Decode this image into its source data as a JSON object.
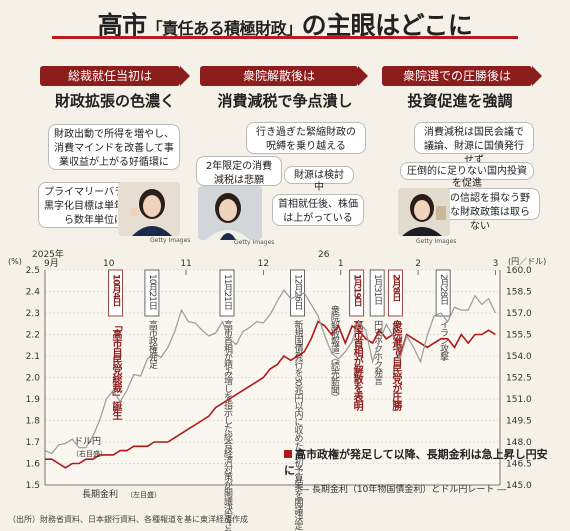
{
  "title": {
    "main": "高市",
    "quote": "「責任ある積極財政」",
    "rest": "の主眼はどこに"
  },
  "phases": [
    {
      "head": "総裁就任当初は",
      "title": "財政拡張の色濃く"
    },
    {
      "head": "衆院解散後は",
      "title": "消費減税で争点潰し"
    },
    {
      "head": "衆院選での圧勝後は",
      "title": "投資促進を強調"
    }
  ],
  "bubbles": {
    "b1": "財政出動で所得を増やし、消費マインドを改善して事業収益が上がる好循環に",
    "b2": "プライマリーバランス黒字化目標は単年度から数年単位に",
    "b3": "行き過ぎた緊縮財政の呪縛を乗り越える",
    "b4": "2年限定の消費減税は悲願",
    "b5": "財源は検討中",
    "b6": "首相就任後、株価は上がっている",
    "b7": "消費減税は国民会議で議論、財源に国債発行せず",
    "b8": "圧倒的に足りない国内投資を促進",
    "b9": "市場の信認を損なう野放図な財政政策は取らない"
  },
  "credit": "Getty Images",
  "chart_subtitle": "高市政権が発足して以降、長期金利は急上昇し円安に",
  "chart_subnote": "― 長期金利（10年物国債金利）とドル円レート ―",
  "source": "（出所）財務省資料、日本銀行資料、各種報道を基に東洋経済作成",
  "colors": {
    "title_red": "#b81c1c",
    "rate_line": "#b01818",
    "fx_line": "#9a9a9a",
    "accent": "#8c1d1d"
  },
  "chart_data": {
    "type": "line",
    "left_unit": "(%)",
    "right_unit": "(円／ドル)",
    "year_label_2025": "2025年",
    "month_sep": "9月",
    "year_label_2026": "26",
    "month_labels": [
      "10",
      "11",
      "12",
      "1",
      "2",
      "3"
    ],
    "left_ticks": [
      "2.5",
      "2.4",
      "2.3",
      "2.2",
      "2.1",
      "2.0",
      "1.9",
      "1.8",
      "1.7",
      "1.6",
      "1.5"
    ],
    "right_ticks": [
      "160.0",
      "158.5",
      "157.0",
      "155.5",
      "154.0",
      "152.5",
      "151.0",
      "149.5",
      "148.0",
      "146.5",
      "145.0"
    ],
    "ylim_left": [
      1.5,
      2.5
    ],
    "ylim_right": [
      145.0,
      160.0
    ],
    "x_range": [
      0,
      200
    ],
    "series": [
      {
        "name": "長期金利（左目盛）",
        "axis": "left",
        "x": [
          0,
          3,
          6,
          9,
          12,
          15,
          18,
          21,
          24,
          27,
          30,
          33,
          36,
          39,
          42,
          45,
          48,
          51,
          54,
          57,
          60,
          63,
          66,
          69,
          72,
          75,
          78,
          81,
          84,
          87,
          90,
          93,
          96,
          99,
          102,
          105,
          108,
          111,
          114,
          117,
          120,
          123,
          126,
          129,
          132,
          135,
          138,
          141,
          144,
          147,
          150,
          153,
          156,
          159,
          162,
          165,
          168,
          171,
          174,
          177,
          180,
          183,
          186,
          189,
          192,
          195,
          198
        ],
        "values": [
          1.62,
          1.62,
          1.6,
          1.58,
          1.6,
          1.6,
          1.62,
          1.62,
          1.64,
          1.64,
          1.64,
          1.66,
          1.66,
          1.68,
          1.68,
          1.68,
          1.7,
          1.7,
          1.7,
          1.72,
          1.74,
          1.76,
          1.78,
          1.8,
          1.82,
          1.86,
          1.88,
          1.9,
          1.92,
          1.94,
          1.96,
          1.98,
          2.0,
          2.04,
          2.06,
          2.1,
          2.08,
          2.1,
          2.12,
          2.18,
          2.26,
          2.24,
          2.2,
          2.24,
          2.16,
          2.24,
          2.22,
          2.18,
          2.16,
          2.22,
          2.18,
          2.2,
          2.1,
          2.2,
          2.18,
          2.16,
          2.14,
          2.16,
          2.18,
          2.18,
          2.14,
          2.2,
          2.16,
          2.2,
          2.2,
          2.22,
          2.2
        ]
      },
      {
        "name": "ドル円（右目盛）",
        "axis": "right",
        "x": [
          0,
          3,
          6,
          9,
          12,
          15,
          18,
          21,
          24,
          27,
          30,
          33,
          36,
          39,
          42,
          45,
          48,
          51,
          54,
          57,
          60,
          63,
          66,
          69,
          72,
          75,
          78,
          81,
          84,
          87,
          90,
          93,
          96,
          99,
          102,
          105,
          108,
          111,
          114,
          117,
          120,
          123,
          126,
          129,
          132,
          135,
          138,
          141,
          144,
          147,
          150,
          153,
          156,
          159,
          162,
          165,
          168,
          171,
          174,
          177,
          180,
          183,
          186,
          189,
          192,
          195,
          198
        ],
        "values": [
          147.4,
          147.2,
          147.8,
          147.9,
          148.2,
          147.6,
          147.6,
          148.4,
          149.5,
          151.0,
          151.6,
          150.8,
          151.6,
          152.7,
          152.6,
          153.8,
          154.2,
          153.9,
          154.6,
          155.7,
          157.2,
          156.4,
          156.3,
          155.8,
          155.4,
          155.6,
          156.4,
          155.2,
          154.8,
          155.7,
          156.0,
          156.4,
          156.3,
          156.9,
          157.8,
          158.6,
          158.0,
          158.2,
          158.4,
          157.6,
          156.8,
          155.4,
          154.2,
          153.8,
          154.3,
          155.0,
          156.4,
          155.8,
          153.6,
          155.0,
          156.2,
          155.4,
          153.8,
          155.4,
          154.6,
          153.6,
          155.4,
          156.8,
          157.0,
          156.4,
          157.4,
          157.2,
          157.2,
          158.2,
          157.6,
          158.0,
          157.0
        ]
      }
    ],
    "events": [
      {
        "date": "10月4日",
        "text": "「高市自民党総裁」誕生",
        "style": "red"
      },
      {
        "date": "10月21日",
        "text": "高市政権発足",
        "style": "gray"
      },
      {
        "date": "11月21日",
        "text": "高市首相が積み増しを指示した総合経済対策が閣議決定される",
        "style": "gray"
      },
      {
        "date": "12月26日",
        "text": "新規国債発行を30兆円以内に収めた当初予算案を閣議決定",
        "style": "gray"
      },
      {
        "date": "",
        "text": "衆院解散報道（読売新聞）",
        "style": "gray"
      },
      {
        "date": "1月19日",
        "text": "高市首相が解散を表明",
        "style": "red"
      },
      {
        "date": "1月31日",
        "text": "円安ホクホク発言",
        "style": "gray"
      },
      {
        "date": "2月8日",
        "text": "衆院選で自民党が圧勝",
        "style": "red"
      },
      {
        "date": "2月28日",
        "text": "イラン攻撃",
        "style": "gray"
      }
    ]
  }
}
